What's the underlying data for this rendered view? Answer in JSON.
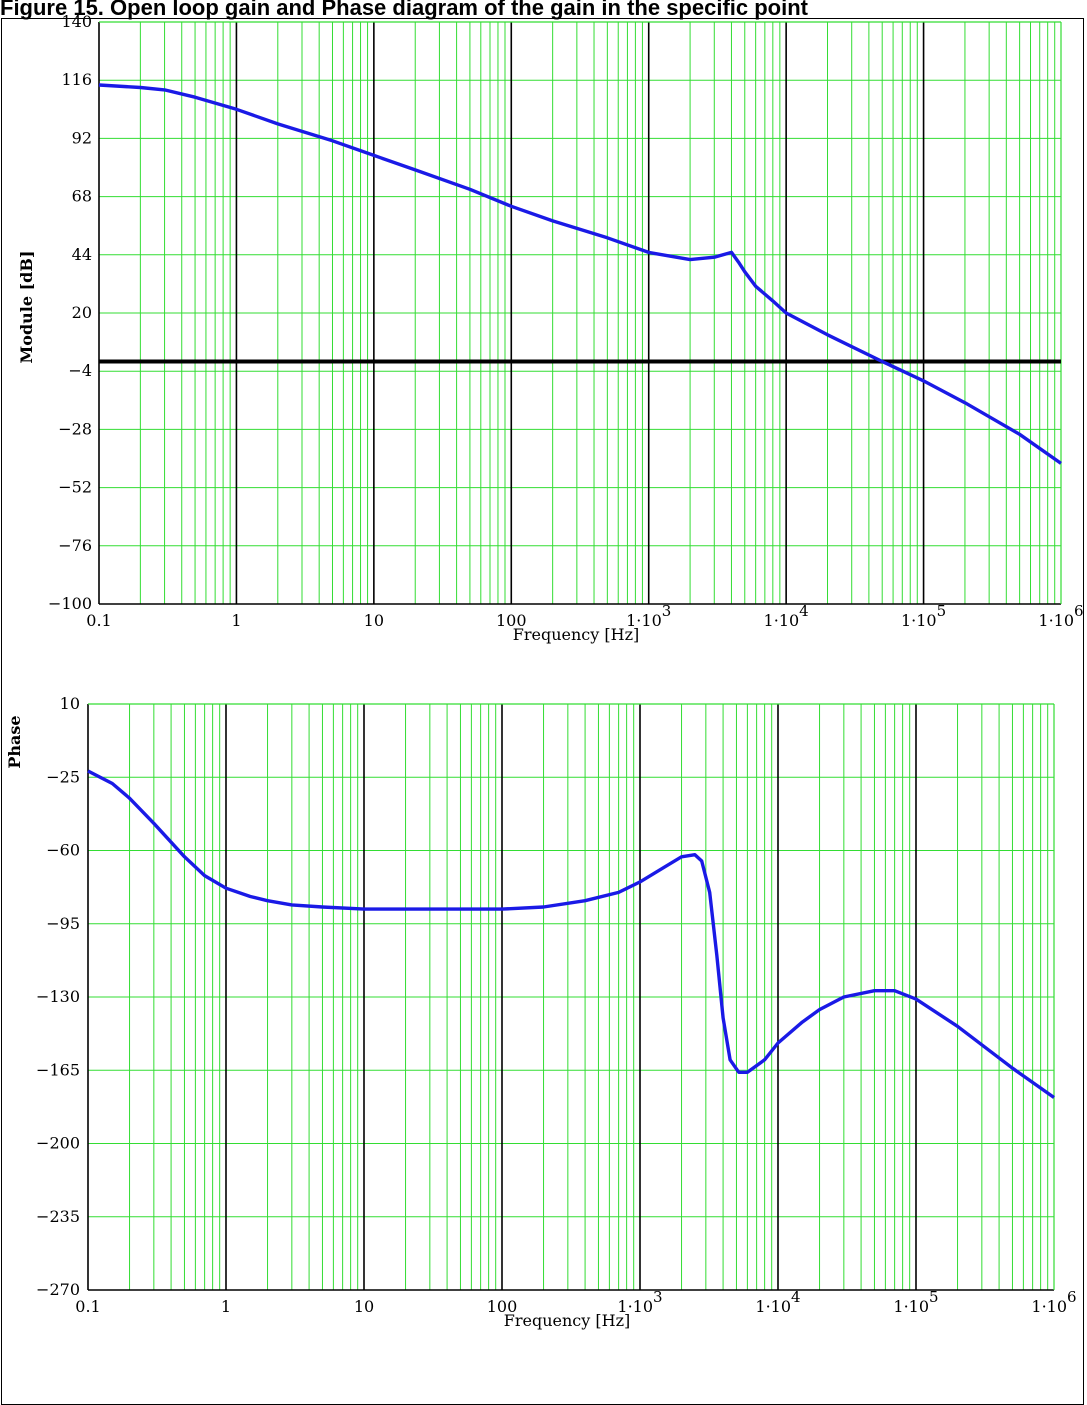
{
  "caption": "Figure 15. Open loop gain and Phase diagram of the gain in the specific point",
  "colors": {
    "grid_minor": "#33dd33",
    "grid_major": "#000000",
    "curve": "#1a1ae6"
  },
  "chart_data": [
    {
      "type": "line",
      "xscale": "log",
      "xlim": [
        0.1,
        1000000
      ],
      "ylim": [
        -100,
        140
      ],
      "xlabel": "Frequency [Hz]",
      "ylabel": "Module [dB]",
      "xticks": [
        {
          "v": 0.1,
          "label": "0.1"
        },
        {
          "v": 1,
          "label": "1"
        },
        {
          "v": 10,
          "label": "10"
        },
        {
          "v": 100,
          "label": "100"
        },
        {
          "v": 1000,
          "label": "1·10",
          "exp": "3"
        },
        {
          "v": 10000,
          "label": "1·10",
          "exp": "4"
        },
        {
          "v": 100000,
          "label": "1·10",
          "exp": "5"
        },
        {
          "v": 1000000,
          "label": "1·10",
          "exp": "6"
        }
      ],
      "yticks": [
        140,
        116,
        92,
        68,
        44,
        20,
        -4,
        -28,
        -52,
        -76,
        -100
      ],
      "reference_line": 0,
      "grid": true,
      "series": [
        {
          "x": [
            0.1,
            0.2,
            0.3,
            0.5,
            1,
            2,
            5,
            10,
            20,
            50,
            100,
            200,
            500,
            1000,
            2000,
            3000,
            4000,
            4500,
            5000,
            6000,
            8000,
            10000,
            20000,
            50000,
            100000,
            200000,
            500000,
            1000000
          ],
          "y": [
            114,
            113,
            112,
            109,
            104,
            98,
            91,
            85,
            79,
            71,
            64,
            58,
            51,
            45,
            42,
            43,
            45,
            41,
            37,
            31,
            25,
            20,
            11,
            0,
            -8,
            -17,
            -30,
            -42
          ]
        }
      ]
    },
    {
      "type": "line",
      "xscale": "log",
      "xlim": [
        0.1,
        1000000
      ],
      "ylim": [
        -270,
        10
      ],
      "xlabel": "Frequency [Hz]",
      "ylabel": "Phase",
      "xticks": [
        {
          "v": 0.1,
          "label": "0.1"
        },
        {
          "v": 1,
          "label": "1"
        },
        {
          "v": 10,
          "label": "10"
        },
        {
          "v": 100,
          "label": "100"
        },
        {
          "v": 1000,
          "label": "1·10",
          "exp": "3"
        },
        {
          "v": 10000,
          "label": "1·10",
          "exp": "4"
        },
        {
          "v": 100000,
          "label": "1·10",
          "exp": "5"
        },
        {
          "v": 1000000,
          "label": "1·10",
          "exp": "6"
        }
      ],
      "yticks": [
        10,
        -25,
        -60,
        -95,
        -130,
        -165,
        -200,
        -235,
        -270
      ],
      "grid": true,
      "series": [
        {
          "x": [
            0.1,
            0.15,
            0.2,
            0.3,
            0.5,
            0.7,
            1,
            1.5,
            2,
            3,
            5,
            10,
            20,
            50,
            100,
            200,
            400,
            700,
            1000,
            1500,
            2000,
            2500,
            2800,
            3200,
            3600,
            4000,
            4500,
            5200,
            6000,
            8000,
            10000,
            15000,
            20000,
            30000,
            50000,
            70000,
            100000,
            200000,
            500000,
            1000000
          ],
          "y": [
            -22,
            -28,
            -35,
            -47,
            -63,
            -72,
            -78,
            -82,
            -84,
            -86,
            -87,
            -88,
            -88,
            -88,
            -88,
            -87,
            -84,
            -80,
            -75,
            -68,
            -63,
            -62,
            -65,
            -80,
            -110,
            -140,
            -160,
            -166,
            -166,
            -160,
            -152,
            -142,
            -136,
            -130,
            -127,
            -127,
            -131,
            -144,
            -164,
            -178
          ]
        }
      ]
    }
  ]
}
